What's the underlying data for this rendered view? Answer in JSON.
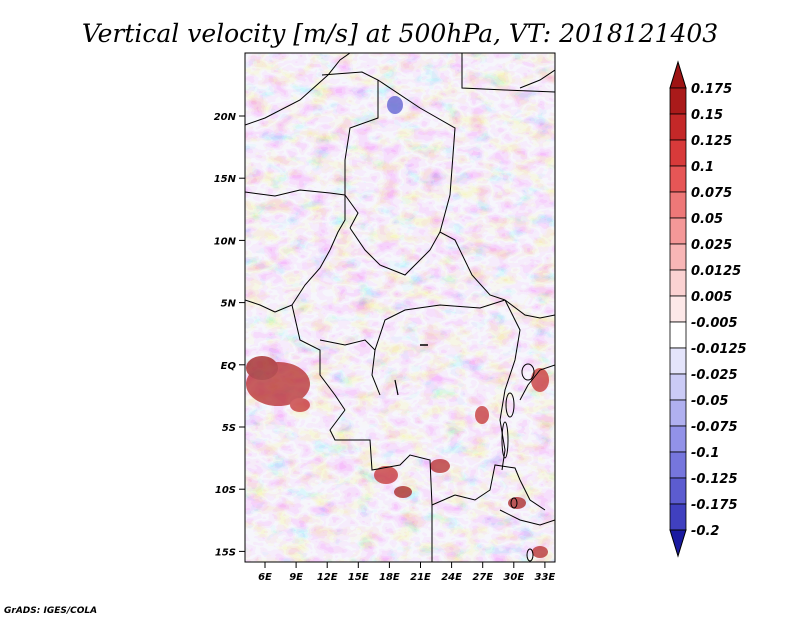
{
  "map": {
    "title": "Vertical velocity [m/s] at 500hPa, VT: 2018121403",
    "variable": "Vertical velocity",
    "units": "m/s",
    "level": "500hPa",
    "valid_time": "2018121403",
    "lat_ticks": [
      "20N",
      "15N",
      "10N",
      "5N",
      "EQ",
      "5S",
      "10S",
      "15S"
    ],
    "lon_ticks": [
      "6E",
      "9E",
      "12E",
      "15E",
      "18E",
      "21E",
      "24E",
      "27E",
      "30E",
      "33E"
    ],
    "colorbar": {
      "levels": [
        {
          "label": "0.175",
          "color": "#aa1a1a"
        },
        {
          "label": "0.15",
          "color": "#c42828"
        },
        {
          "label": "0.125",
          "color": "#d83a3a"
        },
        {
          "label": "0.1",
          "color": "#e65656"
        },
        {
          "label": "0.075",
          "color": "#ee7878"
        },
        {
          "label": "0.05",
          "color": "#f49898"
        },
        {
          "label": "0.025",
          "color": "#f8b6b6"
        },
        {
          "label": "0.0125",
          "color": "#fbd2d2"
        },
        {
          "label": "0.005",
          "color": "#fde8e8"
        },
        {
          "label": "-0.005",
          "color": "#ffffff"
        },
        {
          "label": "-0.0125",
          "color": "#e4e4fb"
        },
        {
          "label": "-0.025",
          "color": "#cbcbf6"
        },
        {
          "label": "-0.05",
          "color": "#b0b0f0"
        },
        {
          "label": "-0.075",
          "color": "#9292e8"
        },
        {
          "label": "-0.1",
          "color": "#7676dd"
        },
        {
          "label": "-0.125",
          "color": "#5c5cd0"
        },
        {
          "label": "-0.175",
          "color": "#4040bf"
        },
        {
          "label": "-0.2",
          "color": "#2a2ab0"
        }
      ],
      "top_arrow_color": "#9e1414",
      "bottom_arrow_color": "#1a1aa0"
    },
    "credit": "GrADS: IGES/COLA"
  }
}
